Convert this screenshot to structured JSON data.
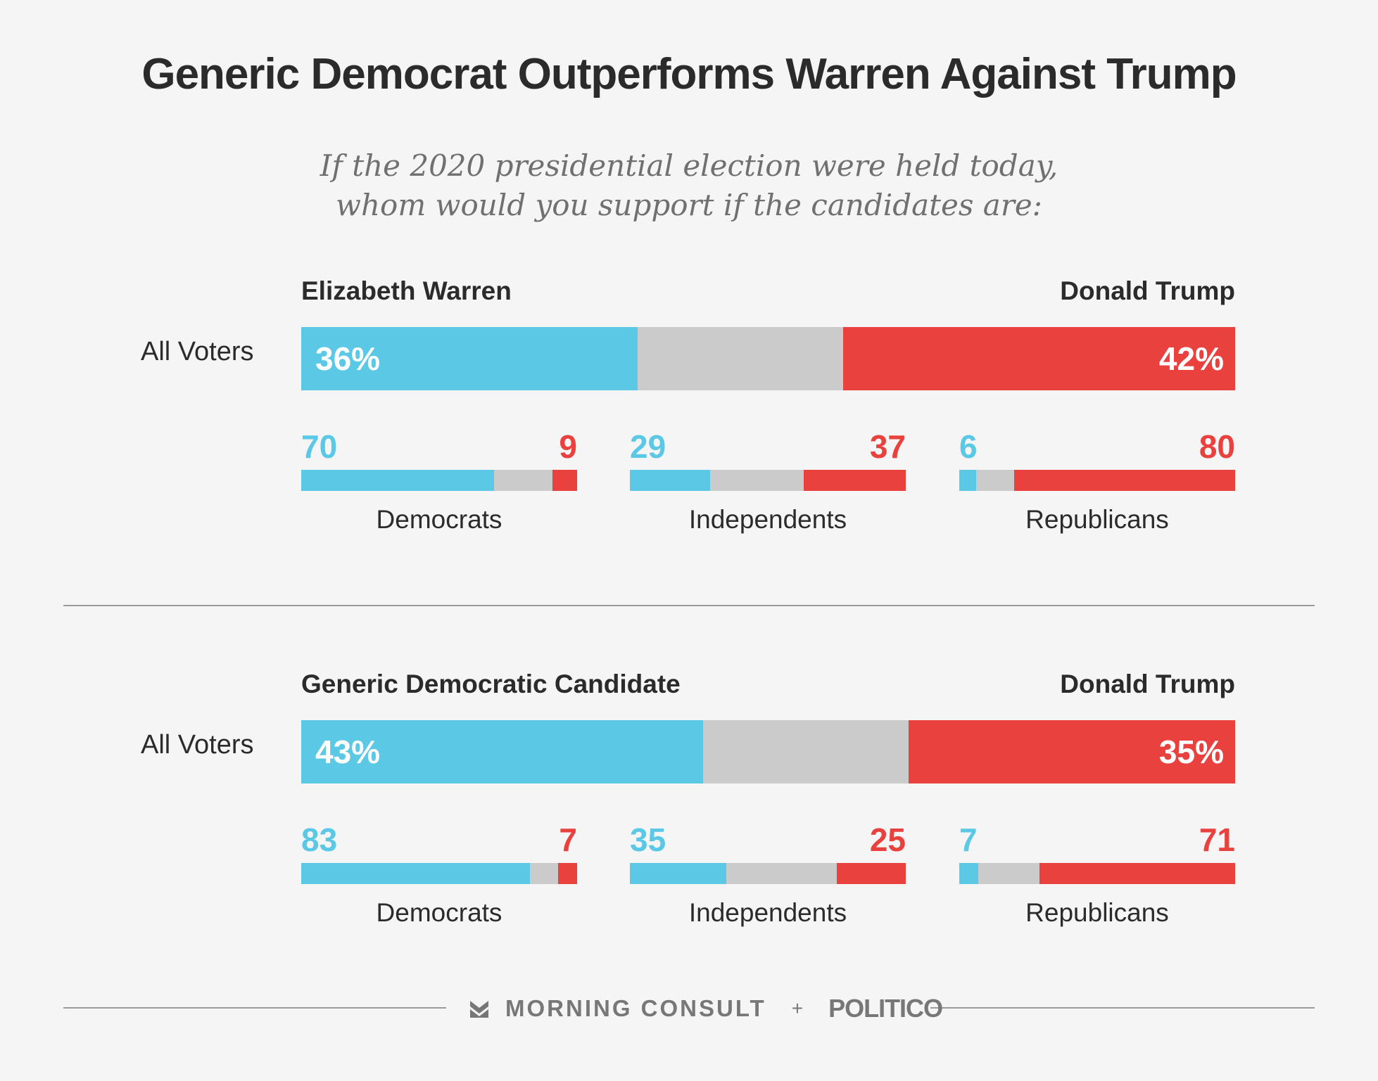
{
  "title": "Generic Democrat Outperforms Warren Against Trump",
  "subtitle": {
    "line1": "If the 2020 presidential election were held today,",
    "line2": "whom would you support if the candidates are:"
  },
  "colors": {
    "democrat": "#5bc8e6",
    "republican": "#e9423e",
    "undecided": "#cbcbcb"
  },
  "chart_data": [
    {
      "type": "bar",
      "stacked": true,
      "left_candidate": "Elizabeth Warren",
      "right_candidate": "Donald Trump",
      "all_voters": {
        "label": "All Voters",
        "dem": 36,
        "rep": 42,
        "dem_label": "36%",
        "rep_label": "42%"
      },
      "groups": [
        {
          "name": "Democrats",
          "dem": 70,
          "rep": 9
        },
        {
          "name": "Independents",
          "dem": 29,
          "rep": 37
        },
        {
          "name": "Republicans",
          "dem": 6,
          "rep": 80
        }
      ]
    },
    {
      "type": "bar",
      "stacked": true,
      "left_candidate": "Generic Democratic Candidate",
      "right_candidate": "Donald Trump",
      "all_voters": {
        "label": "All Voters",
        "dem": 43,
        "rep": 35,
        "dem_label": "43%",
        "rep_label": "35%"
      },
      "groups": [
        {
          "name": "Democrats",
          "dem": 83,
          "rep": 7
        },
        {
          "name": "Independents",
          "dem": 35,
          "rep": 25
        },
        {
          "name": "Republicans",
          "dem": 7,
          "rep": 71
        }
      ]
    }
  ],
  "footer": {
    "icon": "morning-consult-logo-icon",
    "brand1": "MORNING CONSULT",
    "separator": "+",
    "brand2": "POLITICO"
  }
}
